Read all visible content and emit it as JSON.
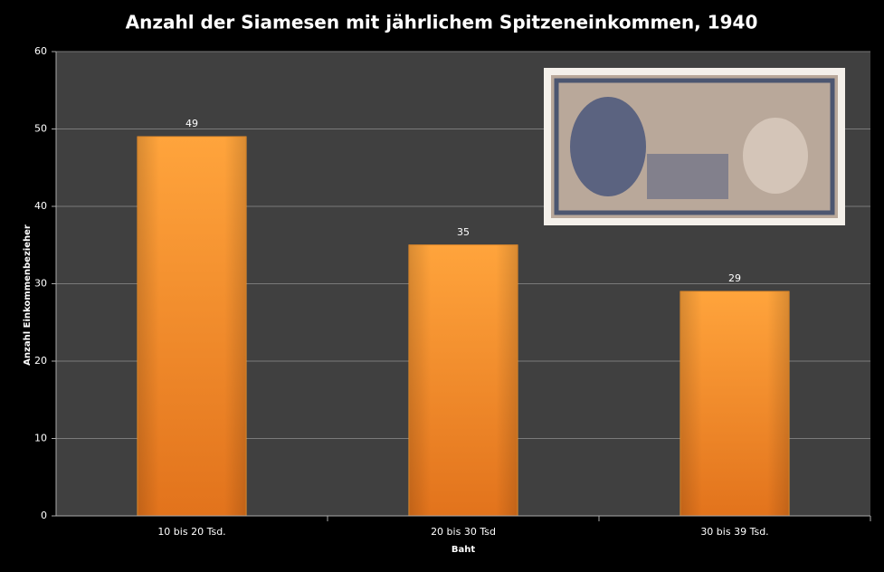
{
  "chart_data": {
    "type": "bar",
    "title": "Anzahl der Siamesen mit jährlichem Spitzeneinkommen, 1940",
    "x_label": "Baht",
    "y_label": "Anzahl Einkommenbezieher",
    "categories": [
      "10 bis 20 Tsd.",
      "20 bis 30 Tsd",
      "30 bis 39 Tsd."
    ],
    "values": [
      49,
      35,
      29
    ],
    "color": "#f7962a",
    "ylim": [
      0,
      60
    ],
    "yticks": [
      0,
      10,
      20,
      30,
      40,
      50,
      60
    ],
    "grid": true
  }
}
